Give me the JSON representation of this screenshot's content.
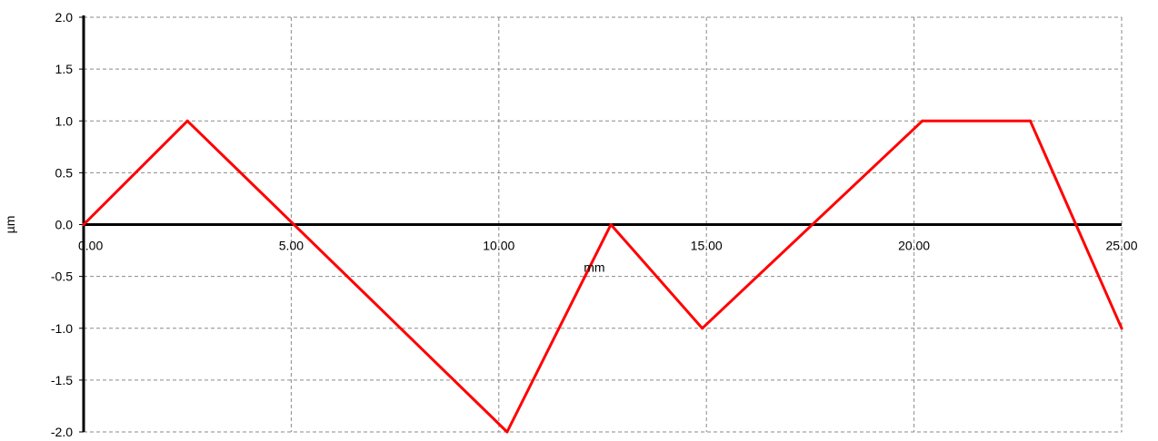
{
  "chart_data": {
    "type": "line",
    "title": "",
    "xlabel": "mm",
    "ylabel": "µm",
    "xlim": [
      0,
      25
    ],
    "ylim": [
      -2,
      2
    ],
    "x_ticks": [
      0,
      5,
      10,
      15,
      20,
      25
    ],
    "x_tick_labels": [
      "0.00",
      "5.00",
      "10.00",
      "15.00",
      "20.00",
      "25.00"
    ],
    "y_ticks": [
      2,
      1.5,
      1,
      0.5,
      0,
      -0.5,
      -1,
      -1.5,
      -2
    ],
    "y_tick_labels": [
      "2.0",
      "1.5",
      "1.0",
      "0.5",
      "0.0",
      "-0.5",
      "-1.0",
      "-1.5",
      "-2.0"
    ],
    "grid": true,
    "legend": "none",
    "series": [
      {
        "color": "#ff0000",
        "points": [
          {
            "x": 0,
            "y": 0
          },
          {
            "x": 2.5,
            "y": 1
          },
          {
            "x": 10.2,
            "y": -2
          },
          {
            "x": 12.7,
            "y": 0
          },
          {
            "x": 14.9,
            "y": -1
          },
          {
            "x": 20.2,
            "y": 1
          },
          {
            "x": 22.8,
            "y": 1
          },
          {
            "x": 25,
            "y": -1
          }
        ]
      }
    ]
  }
}
